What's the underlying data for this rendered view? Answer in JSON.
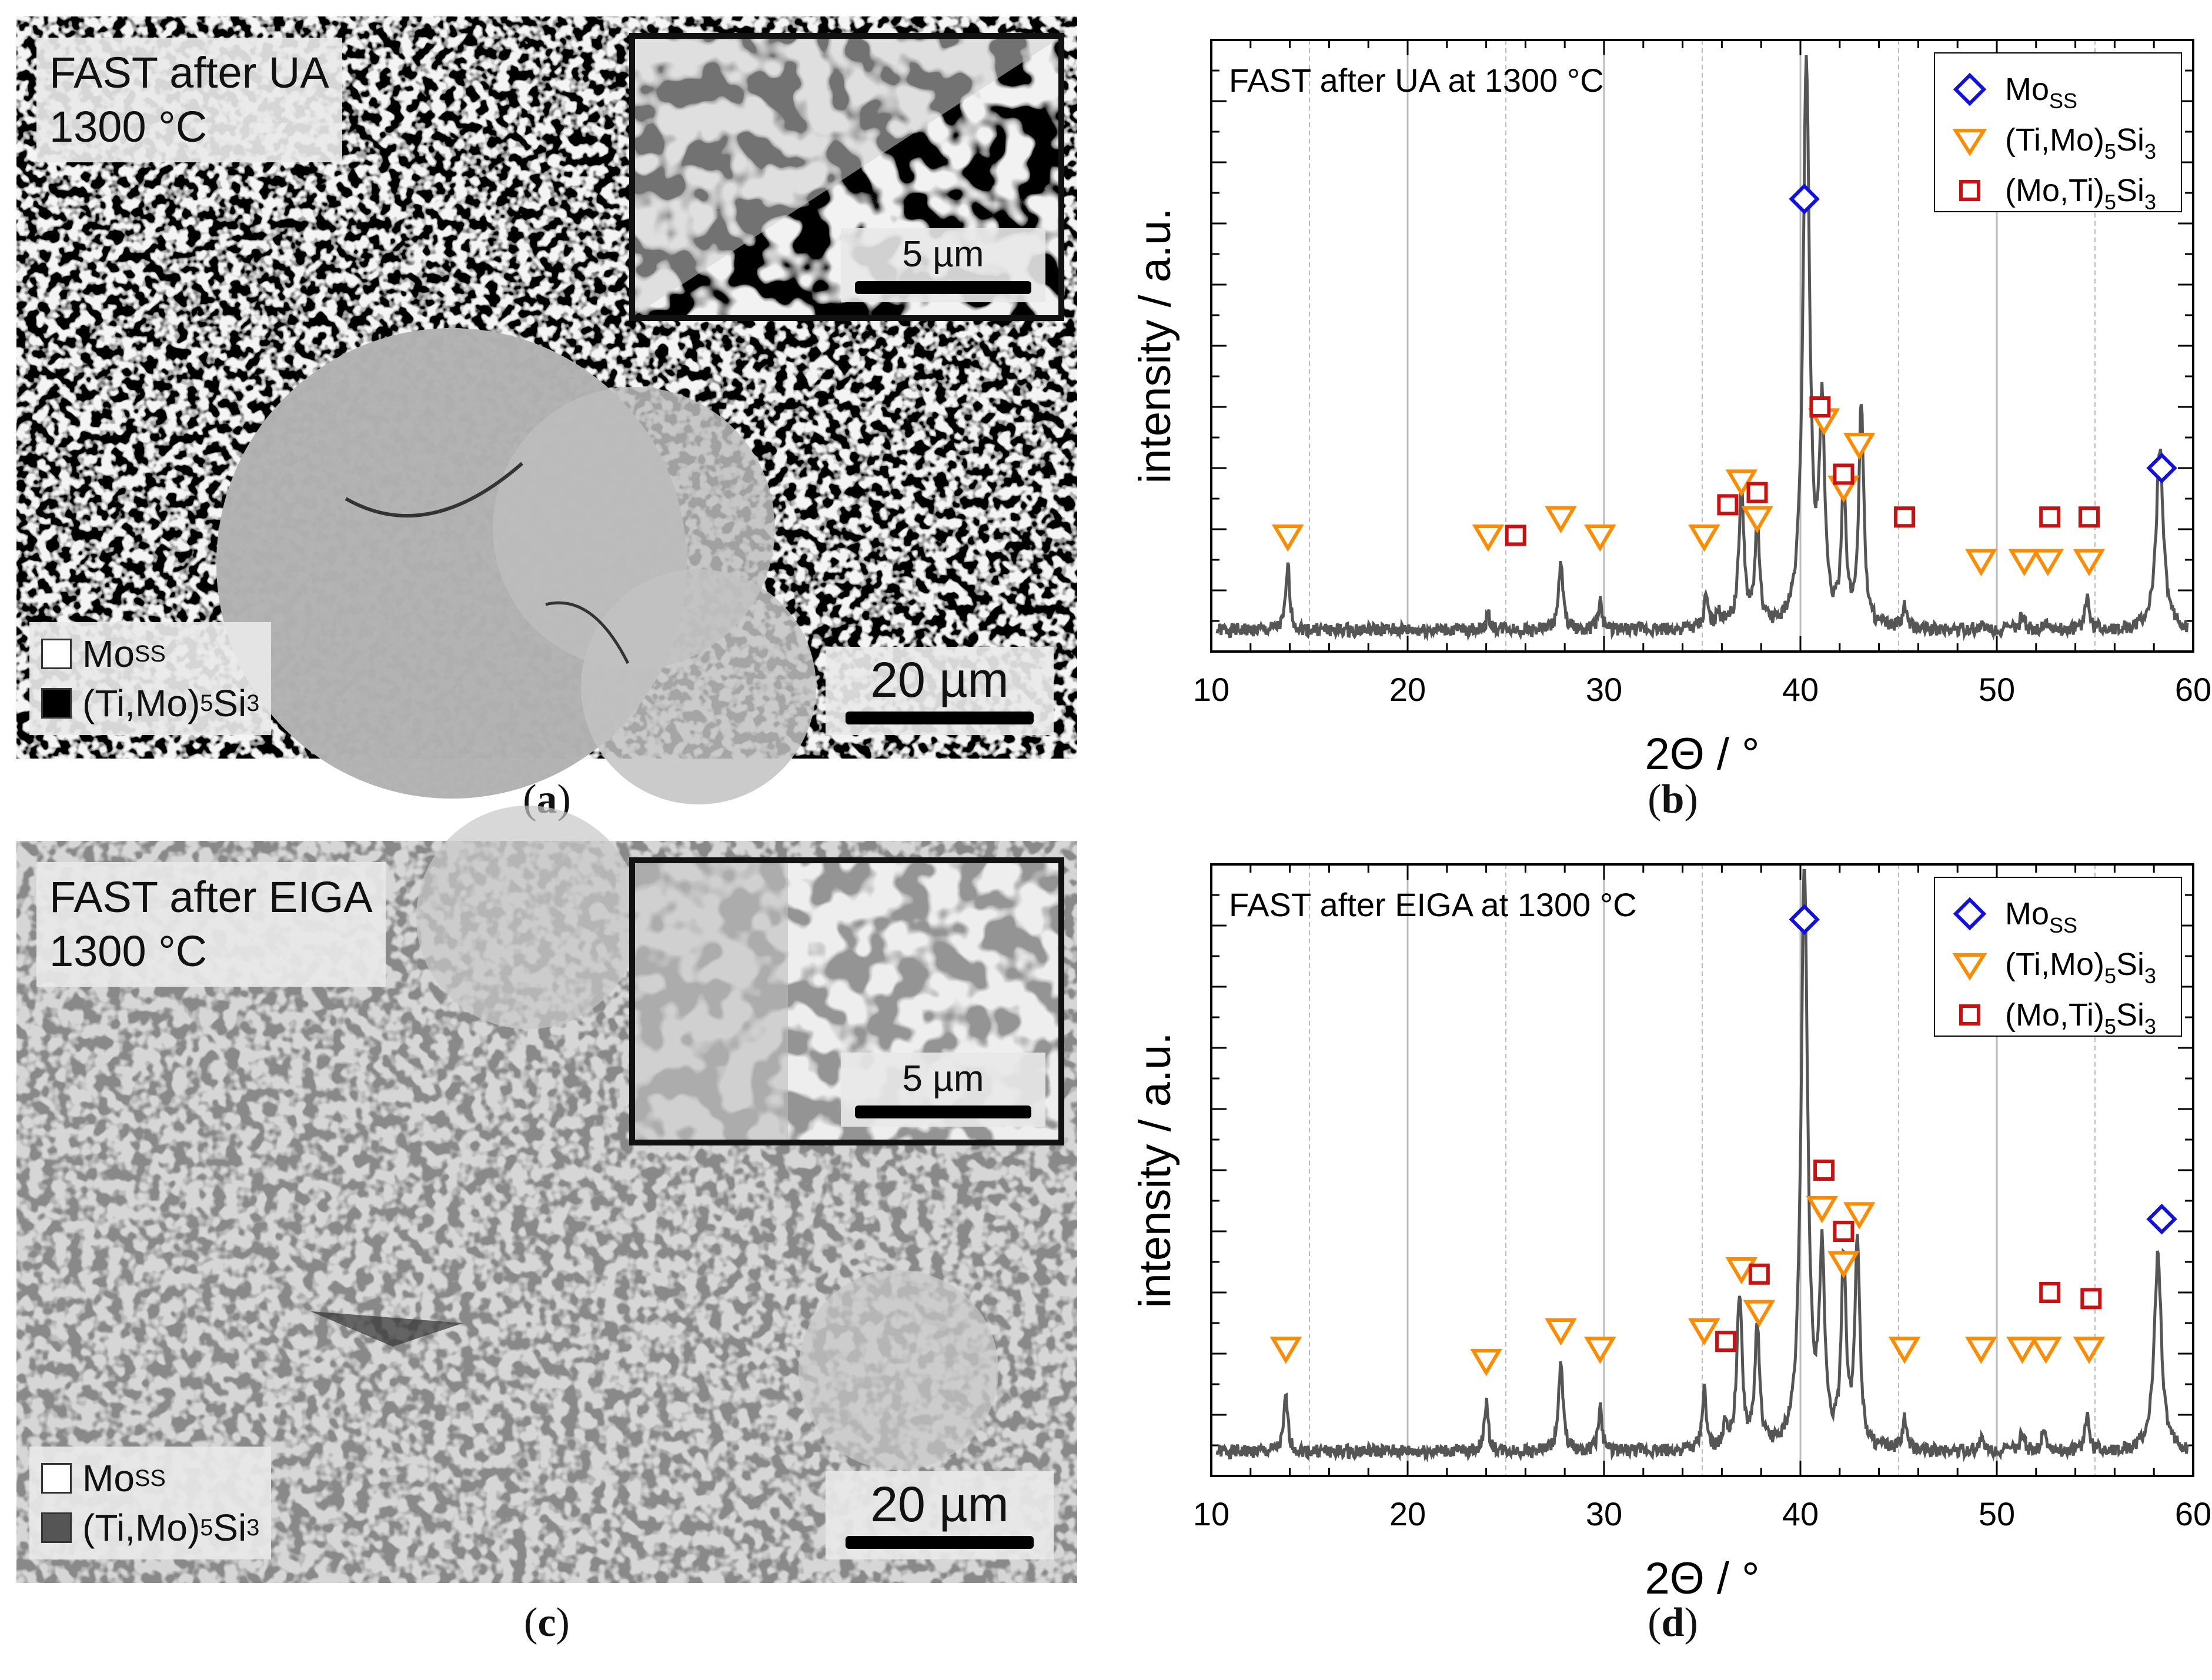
{
  "colors": {
    "mo": "#1010e0",
    "timo": "#ff8c00",
    "moti": "#cc1010",
    "line": "#555555"
  },
  "panels": [
    {
      "caption": "a",
      "title_line1": "FAST after UA",
      "title_line2": "1300 °C",
      "legend1_main": "Mo",
      "legend1_sub": "SS",
      "legend2_pre": "(Ti,Mo)",
      "legend2_sub1": "5",
      "legend2_mid": "Si",
      "legend2_sub2": "3",
      "inset_scale": "5 µm",
      "scale": "20 µm"
    },
    {
      "caption": "c",
      "title_line1": "FAST after EIGA",
      "title_line2": "1300 °C",
      "legend1_main": "Mo",
      "legend1_sub": "SS",
      "legend2_pre": "(Ti,Mo)",
      "legend2_sub1": "5",
      "legend2_mid": "Si",
      "legend2_sub2": "3",
      "inset_scale": "5 µm",
      "scale": "20 µm"
    }
  ],
  "chart_data": [
    {
      "caption": "b",
      "type": "line",
      "title": "FAST after UA at 1300 °C",
      "xlabel": "2Θ / °",
      "ylabel": "intensity / a.u.",
      "xlim": [
        10,
        60
      ],
      "ylim": [
        0,
        100
      ],
      "xticks": [
        "10",
        "20",
        "30",
        "40",
        "50",
        "60"
      ],
      "legend": [
        {
          "name_main": "Mo",
          "name_sub": "SS",
          "marker": "diamond"
        },
        {
          "name_pre": "(Ti,Mo)",
          "name_sub1": "5",
          "name_mid": "Si",
          "name_sub2": "3",
          "marker": "triangle"
        },
        {
          "name_pre": "(Mo,Ti)",
          "name_sub1": "5",
          "name_mid": "Si",
          "name_sub2": "3",
          "marker": "square"
        }
      ],
      "baseline": 3.5,
      "peaks": [
        [
          12.5,
          3.5,
          0.12
        ],
        [
          13.9,
          14,
          0.12
        ],
        [
          24.1,
          6,
          0.12
        ],
        [
          25.0,
          4,
          0.12
        ],
        [
          27.8,
          14,
          0.14
        ],
        [
          29.8,
          8,
          0.12
        ],
        [
          35.2,
          9,
          0.12
        ],
        [
          35.8,
          6,
          0.12
        ],
        [
          36.3,
          5,
          0.12
        ],
        [
          37.0,
          26,
          0.16
        ],
        [
          37.8,
          20,
          0.14
        ],
        [
          40.3,
          96,
          0.2
        ],
        [
          41.1,
          37,
          0.16
        ],
        [
          42.2,
          25,
          0.15
        ],
        [
          43.1,
          40,
          0.15
        ],
        [
          45.3,
          7,
          0.12
        ],
        [
          49.2,
          4,
          0.12
        ],
        [
          51.3,
          6,
          0.12
        ],
        [
          52.5,
          5,
          0.12
        ],
        [
          54.6,
          9,
          0.12
        ],
        [
          58.3,
          33,
          0.22
        ]
      ],
      "markers": {
        "mo": [
          [
            40.2,
            74
          ],
          [
            58.4,
            30
          ]
        ],
        "timo": [
          [
            13.9,
            19
          ],
          [
            24.1,
            19
          ],
          [
            27.8,
            22
          ],
          [
            29.8,
            19
          ],
          [
            35.1,
            19
          ],
          [
            37.0,
            28
          ],
          [
            37.8,
            22
          ],
          [
            41.2,
            38
          ],
          [
            42.2,
            27
          ],
          [
            43.0,
            34
          ],
          [
            49.2,
            15
          ],
          [
            51.4,
            15
          ],
          [
            52.6,
            15
          ],
          [
            54.7,
            15
          ]
        ],
        "moti": [
          [
            25.5,
            19
          ],
          [
            36.3,
            24
          ],
          [
            37.8,
            26
          ],
          [
            41.0,
            40
          ],
          [
            42.2,
            29
          ],
          [
            45.3,
            22
          ],
          [
            52.7,
            22
          ],
          [
            54.7,
            22
          ]
        ]
      }
    },
    {
      "caption": "d",
      "type": "line",
      "title": "FAST after EIGA at 1300 °C",
      "xlabel": "2Θ / °",
      "ylabel": "intensity / a.u.",
      "xlim": [
        10,
        60
      ],
      "ylim": [
        0,
        100
      ],
      "xticks": [
        "10",
        "20",
        "30",
        "40",
        "50",
        "60"
      ],
      "legend": [
        {
          "name_main": "Mo",
          "name_sub": "SS",
          "marker": "diamond"
        },
        {
          "name_pre": "(Ti,Mo)",
          "name_sub1": "5",
          "name_mid": "Si",
          "name_sub2": "3",
          "marker": "triangle"
        },
        {
          "name_pre": "(Mo,Ti)",
          "name_sub1": "5",
          "name_mid": "Si",
          "name_sub2": "3",
          "marker": "square"
        }
      ],
      "baseline": 4,
      "peaks": [
        [
          13.8,
          13,
          0.12
        ],
        [
          24.0,
          12,
          0.12
        ],
        [
          27.8,
          18,
          0.14
        ],
        [
          29.8,
          11,
          0.12
        ],
        [
          35.1,
          14,
          0.12
        ],
        [
          36.2,
          8,
          0.12
        ],
        [
          36.9,
          29,
          0.16
        ],
        [
          37.8,
          24,
          0.14
        ],
        [
          40.2,
          100,
          0.2
        ],
        [
          41.1,
          34,
          0.16
        ],
        [
          42.2,
          34,
          0.15
        ],
        [
          42.9,
          38,
          0.15
        ],
        [
          45.3,
          9,
          0.12
        ],
        [
          49.2,
          6,
          0.12
        ],
        [
          51.3,
          7,
          0.12
        ],
        [
          52.4,
          8,
          0.12
        ],
        [
          54.6,
          10,
          0.12
        ],
        [
          58.2,
          36,
          0.22
        ]
      ],
      "markers": {
        "mo": [
          [
            40.2,
            91
          ],
          [
            58.4,
            42
          ]
        ],
        "timo": [
          [
            13.8,
            21
          ],
          [
            24.0,
            19
          ],
          [
            27.8,
            24
          ],
          [
            29.8,
            21
          ],
          [
            35.1,
            24
          ],
          [
            37.0,
            34
          ],
          [
            37.9,
            27
          ],
          [
            41.1,
            44
          ],
          [
            42.2,
            35
          ],
          [
            43.0,
            43
          ],
          [
            45.3,
            21
          ],
          [
            49.2,
            21
          ],
          [
            51.3,
            21
          ],
          [
            52.5,
            21
          ],
          [
            54.7,
            21
          ]
        ],
        "moti": [
          [
            36.2,
            22
          ],
          [
            37.9,
            33
          ],
          [
            41.2,
            50
          ],
          [
            42.2,
            40
          ],
          [
            52.7,
            30
          ],
          [
            54.8,
            29
          ]
        ]
      }
    }
  ]
}
